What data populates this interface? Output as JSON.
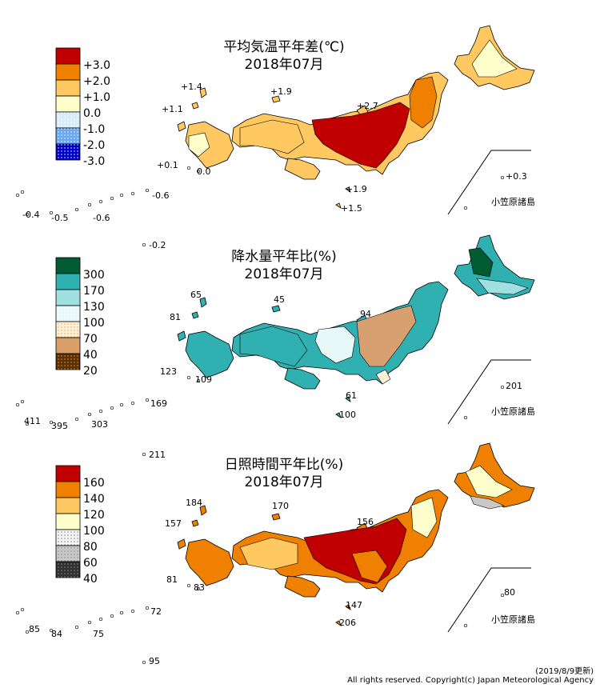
{
  "panels": [
    {
      "id": "temp",
      "title": "平均気温平年差(℃)",
      "subtitle": "2018年07月",
      "legend": [
        {
          "label": "+3.0",
          "color": "#c00000"
        },
        {
          "label": "+2.0",
          "color": "#f08000"
        },
        {
          "label": "+1.0",
          "color": "#ffc860"
        },
        {
          "label": "0.0",
          "color": "#ffffcc"
        },
        {
          "label": "-1.0",
          "color": "#d8ecf8"
        },
        {
          "label": "-2.0",
          "color": "#6aa8f0"
        },
        {
          "label": "-3.0",
          "color": "#0000cc"
        }
      ],
      "map_colors": [
        "#ffc860",
        "#f08000",
        "#c00000",
        "#ffffcc"
      ],
      "stations": [
        "+1.4",
        "+1.9",
        "+1.1",
        "+2.7",
        "+0.1",
        "0.0",
        "+1.9",
        "+1.5",
        "-0.4",
        "-0.5",
        "-0.6",
        "-0.6",
        "+0.3",
        "-0.2"
      ],
      "ogasawara": "小笠原諸島"
    },
    {
      "id": "precip",
      "title": "降水量平年比(%)",
      "subtitle": "2018年07月",
      "legend": [
        {
          "label": "300",
          "color": "#005a32"
        },
        {
          "label": "170",
          "color": "#30b0b0"
        },
        {
          "label": "130",
          "color": "#a0e0e0"
        },
        {
          "label": "100",
          "color": "#e8f8f8"
        },
        {
          "label": "70",
          "color": "#fff0d8"
        },
        {
          "label": "40",
          "color": "#d8a070"
        },
        {
          "label": "20",
          "color": "#5a3000"
        }
      ],
      "map_colors": [
        "#30b0b0",
        "#a0e0e0",
        "#e8f8f8",
        "#d8a070",
        "#005a32",
        "#fff0d8"
      ],
      "stations": [
        "65",
        "45",
        "81",
        "94",
        "123",
        "109",
        "61",
        "100",
        "411",
        "395",
        "303",
        "169",
        "201"
      ],
      "ogasawara": "小笠原諸島"
    },
    {
      "id": "sun",
      "title": "日照時間平年比(%)",
      "subtitle": "2018年07月",
      "legend": [
        {
          "label": "160",
          "color": "#c00000"
        },
        {
          "label": "140",
          "color": "#f08000"
        },
        {
          "label": "120",
          "color": "#ffc860"
        },
        {
          "label": "100",
          "color": "#ffffcc"
        },
        {
          "label": "80",
          "color": "#f4f4f4"
        },
        {
          "label": "60",
          "color": "#c8c8c8"
        },
        {
          "label": "40",
          "color": "#303030"
        }
      ],
      "map_colors": [
        "#f08000",
        "#c00000",
        "#ffc860",
        "#ffffcc",
        "#c8c8c8"
      ],
      "stations": [
        "184",
        "170",
        "157",
        "156",
        "81",
        "83",
        "147",
        "206",
        "85",
        "84",
        "75",
        "72",
        "80",
        "211",
        "95"
      ],
      "ogasawara": "小笠原諸島"
    }
  ],
  "footer": {
    "updated": "(2019/8/9更新)",
    "copyright": "All rights reserved. Copyright(c) Japan Meteorological Agency"
  }
}
